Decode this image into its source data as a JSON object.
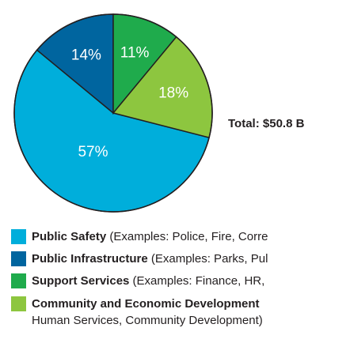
{
  "chart_data": {
    "type": "pie",
    "categories": [
      "Public Safety",
      "Public Infrastructure",
      "Support Services",
      "Community and Economic Development"
    ],
    "descriptions": [
      " (Examples: Police, Fire, Corre",
      " (Examples: Parks, Pul",
      " (Examples: Finance, HR,",
      "Human Services, Community Development)"
    ],
    "values": [
      57,
      14,
      11,
      18
    ],
    "value_labels": [
      "57%",
      "14%",
      "11%",
      "18%"
    ],
    "colors": [
      "#00aedb",
      "#00659f",
      "#1fab4c",
      "#8dc63f"
    ],
    "total_label": "Total: $50.8 B"
  }
}
